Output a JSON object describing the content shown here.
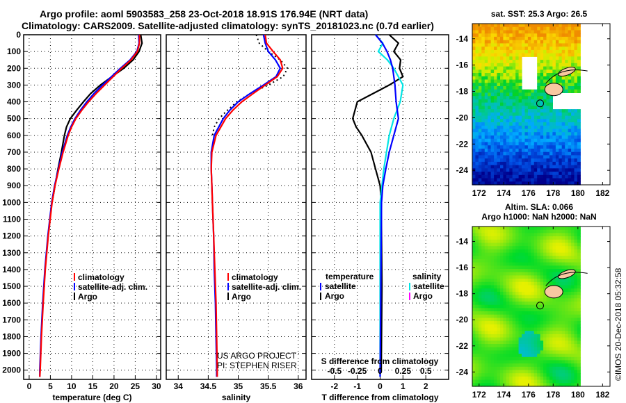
{
  "header": {
    "line1": "Argo profile: aoml 5903583_258 23-Oct-2018 18.91S 176.94E (NRT data)",
    "line2": "Climatology: CARS2009. Satellite-adjusted climatology: synTS_20181023.nc (0.7d earlier)"
  },
  "credit": {
    "project": "US ARGO PROJECT",
    "pi": "PI: STEPHEN RISER",
    "stamp": "©IMOS 20-Dec-2018 05:32:58"
  },
  "colors": {
    "climatology": "#ff0000",
    "satellite": "#0000ff",
    "argo": "#000000",
    "sal_satellite": "#00e5e5",
    "sal_argo": "#ff00ff",
    "land": "#f8c8a0"
  },
  "chart_data": [
    {
      "type": "line",
      "id": "temperature",
      "xlabel": "temperature (deg C)",
      "ylabel": "depth",
      "xlim": [
        -1.3,
        31
      ],
      "ylim": [
        2055,
        0
      ],
      "xticks": [
        0,
        5,
        10,
        15,
        20,
        25,
        30
      ],
      "yticks": [
        0,
        100,
        200,
        300,
        400,
        500,
        600,
        700,
        800,
        900,
        1000,
        1100,
        1200,
        1300,
        1400,
        1500,
        1600,
        1700,
        1800,
        1900,
        2000
      ],
      "grid": true,
      "legend": {
        "placement": "bottom-center",
        "items": [
          "climatology",
          "satellite-adj. clim.",
          "Argo"
        ]
      },
      "series": [
        {
          "name": "climatology",
          "color": "#ff0000",
          "points": [
            [
              0,
              26
            ],
            [
              50,
              26
            ],
            [
              100,
              25.5
            ],
            [
              150,
              24
            ],
            [
              200,
              21.8
            ],
            [
              250,
              19.8
            ],
            [
              300,
              17.8
            ],
            [
              350,
              15.8
            ],
            [
              400,
              14
            ],
            [
              450,
              12.4
            ],
            [
              500,
              11
            ],
            [
              550,
              10
            ],
            [
              600,
              9.2
            ],
            [
              700,
              8
            ],
            [
              800,
              7
            ],
            [
              900,
              6.1
            ],
            [
              1000,
              5.4
            ],
            [
              1200,
              4.5
            ],
            [
              1400,
              3.8
            ],
            [
              1600,
              3.3
            ],
            [
              1800,
              2.9
            ],
            [
              2000,
              2.6
            ],
            [
              2040,
              2.5
            ]
          ]
        },
        {
          "name": "satellite-adj. clim.",
          "color": "#0000ff",
          "points": [
            [
              0,
              25.8
            ],
            [
              50,
              25.9
            ],
            [
              100,
              25.4
            ],
            [
              150,
              23.8
            ],
            [
              200,
              21.5
            ],
            [
              250,
              19.4
            ],
            [
              300,
              17.3
            ],
            [
              350,
              15.3
            ],
            [
              400,
              13.6
            ],
            [
              450,
              12.1
            ],
            [
              500,
              10.8
            ],
            [
              550,
              9.8
            ],
            [
              600,
              9.0
            ],
            [
              700,
              7.8
            ],
            [
              800,
              6.9
            ],
            [
              900,
              6.0
            ],
            [
              1000,
              5.3
            ],
            [
              1200,
              4.4
            ],
            [
              1400,
              3.7
            ],
            [
              1600,
              3.2
            ],
            [
              1800,
              2.8
            ],
            [
              2000,
              2.5
            ],
            [
              2040,
              2.5
            ]
          ]
        },
        {
          "name": "Argo",
          "color": "#000000",
          "points": [
            [
              0,
              26.3
            ],
            [
              50,
              26.6
            ],
            [
              100,
              25.9
            ],
            [
              150,
              24.5
            ],
            [
              200,
              22.3
            ],
            [
              250,
              19.5
            ],
            [
              300,
              16.8
            ],
            [
              350,
              14.5
            ],
            [
              400,
              12.8
            ],
            [
              450,
              11.2
            ],
            [
              500,
              9.7
            ],
            [
              550,
              8.8
            ],
            [
              600,
              8.3
            ],
            [
              700,
              7.6
            ],
            [
              800,
              6.8
            ],
            [
              900,
              6.1
            ],
            [
              1000,
              5.4
            ]
          ]
        }
      ]
    },
    {
      "type": "line",
      "id": "salinity",
      "xlabel": "salinity",
      "xlim": [
        33.8,
        36.13
      ],
      "ylim": [
        2055,
        0
      ],
      "xticks": [
        34,
        34.5,
        35,
        35.5,
        36
      ],
      "grid": true,
      "legend": {
        "placement": "bottom-right",
        "items": [
          "climatology",
          "satellite-adj. clim.",
          "Argo"
        ]
      },
      "series": [
        {
          "name": "climatology",
          "color": "#ff0000",
          "points": [
            [
              0,
              35.45
            ],
            [
              50,
              35.47
            ],
            [
              100,
              35.58
            ],
            [
              150,
              35.7
            ],
            [
              200,
              35.74
            ],
            [
              250,
              35.65
            ],
            [
              300,
              35.45
            ],
            [
              350,
              35.25
            ],
            [
              400,
              35.06
            ],
            [
              450,
              34.91
            ],
            [
              500,
              34.79
            ],
            [
              600,
              34.63
            ],
            [
              700,
              34.56
            ],
            [
              800,
              34.55
            ],
            [
              900,
              34.56
            ],
            [
              1000,
              34.57
            ],
            [
              1200,
              34.59
            ],
            [
              1400,
              34.61
            ],
            [
              1600,
              34.63
            ],
            [
              1800,
              34.64
            ],
            [
              2000,
              34.65
            ],
            [
              2040,
              34.65
            ]
          ]
        },
        {
          "name": "satellite-adj. clim.",
          "color": "#0000ff",
          "points": [
            [
              0,
              35.42
            ],
            [
              50,
              35.45
            ],
            [
              100,
              35.5
            ],
            [
              150,
              35.62
            ],
            [
              200,
              35.7
            ],
            [
              250,
              35.63
            ],
            [
              300,
              35.42
            ],
            [
              350,
              35.2
            ],
            [
              400,
              35.0
            ],
            [
              450,
              34.86
            ],
            [
              500,
              34.75
            ],
            [
              600,
              34.6
            ],
            [
              700,
              34.55
            ],
            [
              800,
              34.55
            ],
            [
              900,
              34.56
            ],
            [
              1000,
              34.57
            ],
            [
              1200,
              34.59
            ],
            [
              1400,
              34.6
            ],
            [
              1600,
              34.62
            ],
            [
              1800,
              34.63
            ],
            [
              2000,
              34.64
            ],
            [
              2040,
              34.64
            ]
          ]
        },
        {
          "name": "Argo",
          "color": "#000000",
          "points": [
            [
              0,
              35.3
            ],
            [
              50,
              35.35
            ],
            [
              100,
              35.5
            ],
            [
              150,
              35.7
            ],
            [
              200,
              35.82
            ],
            [
              250,
              35.75
            ],
            [
              300,
              35.5
            ],
            [
              350,
              35.2
            ],
            [
              400,
              34.98
            ],
            [
              450,
              34.82
            ],
            [
              500,
              34.68
            ],
            [
              550,
              34.6
            ],
            [
              600,
              34.57
            ]
          ]
        }
      ]
    },
    {
      "type": "line",
      "id": "difference",
      "xlabel": "T difference from climatology",
      "xlabel2": "S difference from climatology",
      "xlim": [
        -3,
        3
      ],
      "x2lim": [
        -0.75,
        0.75
      ],
      "ylim": [
        2055,
        0
      ],
      "xticks": [
        -2,
        -1,
        0,
        1,
        2
      ],
      "x2ticks": [
        -0.5,
        -0.25,
        0,
        0.25,
        0.5
      ],
      "x2ticklabels": [
        "-0.5",
        "-0.25",
        "0",
        "0.25",
        "0.5"
      ],
      "grid": true,
      "legend": {
        "placement": "bottom",
        "temperature_title": "temperature",
        "salinity_title": "salinity",
        "temperature_items": [
          "satellite",
          "Argo"
        ],
        "salinity_items": [
          "satellite",
          "Argo"
        ]
      },
      "series": [
        {
          "name": "temperature satellite",
          "color": "#0000ff",
          "axis": "T",
          "points": [
            [
              0,
              -0.2
            ],
            [
              50,
              0.1
            ],
            [
              100,
              0.3
            ],
            [
              150,
              0.45
            ],
            [
              200,
              0.55
            ],
            [
              300,
              0.65
            ],
            [
              400,
              0.7
            ],
            [
              500,
              0.8
            ],
            [
              600,
              0.6
            ],
            [
              700,
              0.4
            ],
            [
              800,
              0.25
            ],
            [
              900,
              0.12
            ],
            [
              1000,
              0.06
            ],
            [
              1500,
              0.03
            ],
            [
              2040,
              0.0
            ]
          ]
        },
        {
          "name": "salinity satellite",
          "color": "#00e5e5",
          "axis": "S",
          "points": [
            [
              0,
              -0.05
            ],
            [
              50,
              0.03
            ],
            [
              100,
              -0.02
            ],
            [
              150,
              0.08
            ],
            [
              200,
              0.15
            ],
            [
              300,
              0.25
            ],
            [
              400,
              0.22
            ],
            [
              500,
              0.15
            ],
            [
              600,
              0.1
            ],
            [
              800,
              0.04
            ],
            [
              1000,
              0.0
            ],
            [
              2040,
              0.0
            ]
          ]
        },
        {
          "name": "temperature Argo",
          "color": "#000000",
          "axis": "T",
          "points": [
            [
              0,
              0.4
            ],
            [
              50,
              0.8
            ],
            [
              100,
              0.6
            ],
            [
              150,
              0.9
            ],
            [
              200,
              0.85
            ],
            [
              250,
              1.0
            ],
            [
              300,
              0.4
            ],
            [
              350,
              -0.3
            ],
            [
              400,
              -1.0
            ],
            [
              450,
              -1.1
            ],
            [
              500,
              -1.2
            ],
            [
              550,
              -1.05
            ],
            [
              600,
              -0.8
            ],
            [
              700,
              -0.4
            ],
            [
              800,
              -0.2
            ],
            [
              900,
              0.0
            ],
            [
              1000,
              0.05
            ],
            [
              1500,
              0.08
            ],
            [
              2000,
              0.05
            ]
          ]
        }
      ]
    },
    {
      "type": "heatmap",
      "id": "sst_map",
      "title": "sat. SST: 25.3 Argo: 26.5",
      "xlim": [
        171.45,
        182.6
      ],
      "ylim": [
        -25.1,
        -12.85
      ],
      "xticks": [
        172,
        174,
        176,
        178,
        180,
        182
      ],
      "yticks": [
        -14,
        -16,
        -18,
        -20,
        -22,
        -24
      ],
      "argo_position": [
        176.94,
        -18.91
      ]
    },
    {
      "type": "heatmap",
      "id": "sla_map",
      "title": "Altim. SLA: 0.066",
      "subtitle": "Argo h1000: NaN h2000: NaN",
      "xlim": [
        171.45,
        182.6
      ],
      "ylim": [
        -25.1,
        -12.85
      ],
      "xticks": [
        172,
        174,
        176,
        178,
        180,
        182
      ],
      "yticks": [
        -14,
        -16,
        -18,
        -20,
        -22,
        -24
      ],
      "argo_position": [
        176.94,
        -18.91
      ]
    }
  ]
}
